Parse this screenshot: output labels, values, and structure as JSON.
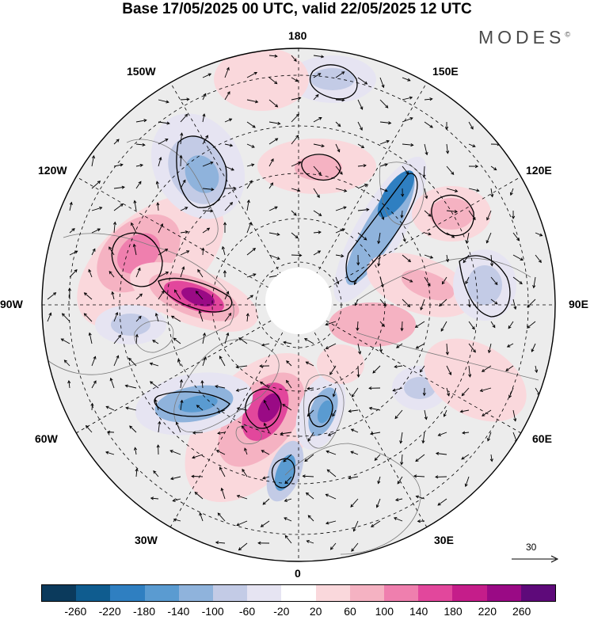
{
  "title": "Base 17/05/2025 00 UTC, valid 22/05/2025 12 UTC",
  "brand": "MODES",
  "brand_mark": "©",
  "longitude_labels": {
    "lon_180": "180",
    "lon_150w": "150W",
    "lon_150e": "150E",
    "lon_120w": "120W",
    "lon_120e": "120E",
    "lon_90w": "90W",
    "lon_90e": "90E",
    "lon_60w": "60W",
    "lon_60e": "60E",
    "lon_30w": "30W",
    "lon_30e": "30E",
    "lon_0": "0"
  },
  "reference_vector": {
    "label": "30"
  },
  "colorbar": {
    "colors": [
      "#0b3a5c",
      "#0f5c8f",
      "#2f7fc1",
      "#5a9bd1",
      "#8fb3dc",
      "#c3cbe6",
      "#e6e4f2",
      "#ffffff",
      "#fad8dc",
      "#f5b2c2",
      "#ef7fae",
      "#e2479c",
      "#c51d8a",
      "#9a0a85",
      "#5e0a7a"
    ],
    "ticks": [
      "-260",
      "-220",
      "-180",
      "-140",
      "-100",
      "-60",
      "-20",
      "20",
      "60",
      "100",
      "140",
      "180",
      "220",
      "260"
    ]
  }
}
